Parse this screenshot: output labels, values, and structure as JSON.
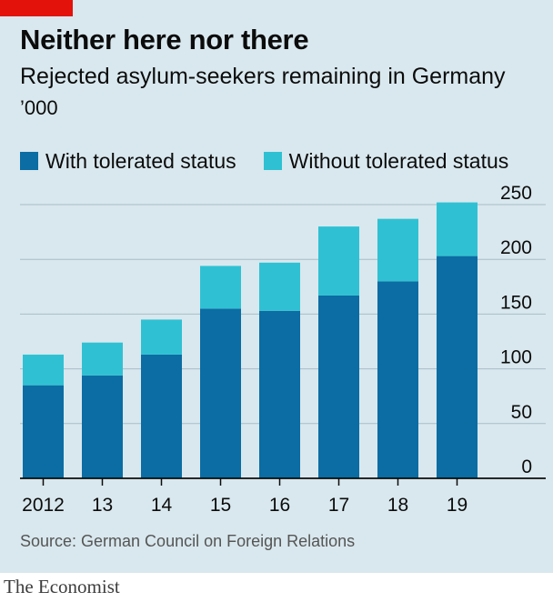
{
  "header": {
    "title": "Neither here nor there",
    "subtitle": "Rejected asylum-seekers remaining in Germany",
    "unit": "’000"
  },
  "colors": {
    "background": "#d9e8ee",
    "brand_red": "#e3120b",
    "with_tolerated": "#0b6da3",
    "without_tolerated": "#2fc1d3",
    "gridline": "#a9bcc6",
    "axis": "#0c0c0c"
  },
  "chart_data": {
    "type": "bar",
    "stacked": true,
    "categories": [
      "2012",
      "13",
      "14",
      "15",
      "16",
      "17",
      "18",
      "19"
    ],
    "series": [
      {
        "name": "With tolerated status",
        "values": [
          85,
          94,
          113,
          155,
          153,
          167,
          180,
          203
        ]
      },
      {
        "name": "Without tolerated status",
        "values": [
          28,
          30,
          32,
          39,
          44,
          63,
          57,
          49
        ]
      }
    ],
    "y_ticks": [
      "0",
      "50",
      "100",
      "150",
      "200",
      "250"
    ],
    "ylim": [
      0,
      250
    ],
    "y_axis_side": "right",
    "grid": true,
    "legend_position": "top-left"
  },
  "source": "Source: German Council on Foreign Relations",
  "footer": "The Economist"
}
